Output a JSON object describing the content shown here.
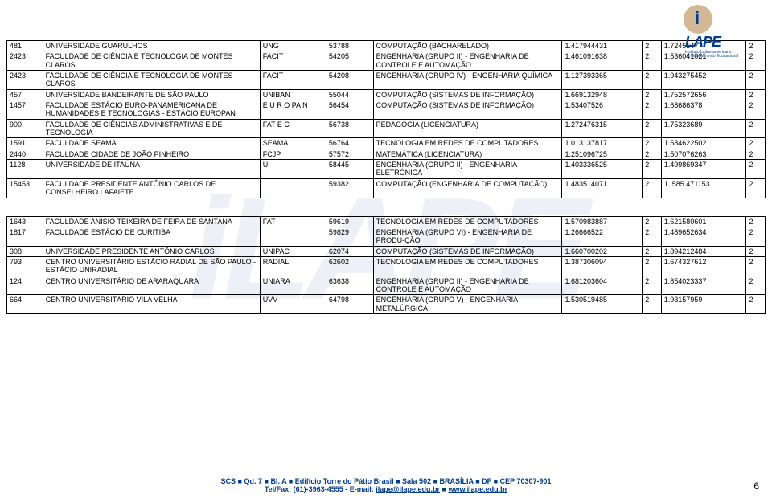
{
  "logo": {
    "main": "LAPE",
    "sub1": "Instituto Latino-americano",
    "sub2": "de Planejamento Educacional"
  },
  "watermark": "iLAPE",
  "tables": [
    {
      "rows": [
        {
          "c0": "481",
          "c1": "UNIVERSIDADE GUARULHOS",
          "c2": "UNG",
          "c3": "53788",
          "c4": "COMPUTAÇÃO (BACHARELADO)",
          "c5": "1.417944431",
          "c6": "2",
          "c7": "1.724554777",
          "c8": "2"
        },
        {
          "c0": "2423",
          "c1": "FACULDADE DE CIÊNCIA E TECNOLOGIA DE MONTES CLAROS",
          "c2": "FACIT",
          "c3": "54205",
          "c4": "ENGENHARIA (GRUPO II) - ENGENHARIA DE CONTROLE E AUTOMAÇÃO",
          "c5": "1.461091638",
          "c6": "2",
          "c7": "1.536041021",
          "c8": "2"
        },
        {
          "c0": "2423",
          "c1": "FACULDADE DE CIÊNCIA E TECNOLOGIA DE MONTES CLAROS",
          "c2": "FACIT",
          "c3": "54208",
          "c4": "ENGENHARIA (GRUPO IV) - ENGENHARIA QUÍMICA",
          "c5": "1.127393365",
          "c6": "2",
          "c7": "1.943275452",
          "c8": "2"
        },
        {
          "c0": "457",
          "c1": "UNIVERSIDADE BANDEIRANTE DE SÃO PAULO",
          "c2": "UNIBAN",
          "c3": "55044",
          "c4": "COMPUTAÇÃO (SISTEMAS DE INFORMAÇÃO)",
          "c5": "1.669132948",
          "c6": "2",
          "c7": "1.752572656",
          "c8": "2"
        },
        {
          "c0": "1457",
          "c1": "FACULDADE ESTÁCIO EURO-PANAMERICANA DE HUMANIDADES E TECNOLOGIAS - ESTÁCIO EUROPAN",
          "c2": "E U R O PA N",
          "c3": "56454",
          "c4": "COMPUTAÇÃO (SISTEMAS DE INFORMAÇÃO)",
          "c5": "1.53407526",
          "c6": "2",
          "c7": "1.68686378",
          "c8": "2"
        },
        {
          "c0": "900",
          "c1": "FACULDADE DE CIÊNCIAS ADMINISTRATIVAS E DE TECNOLOGIA",
          "c2": "FAT E C",
          "c3": "56738",
          "c4": "PEDAGOGIA (LICENCIATURA)",
          "c5": "1.272476315",
          "c6": "2",
          "c7": "1.75323689",
          "c8": "2"
        },
        {
          "c0": "1591",
          "c1": "FACULDADE SEAMA",
          "c2": "SEAMA",
          "c3": "56764",
          "c4": "TECNOLOGIA EM REDES DE COMPUTADORES",
          "c5": "1.013137817",
          "c6": "2",
          "c7": "1.584622502",
          "c8": "2"
        },
        {
          "c0": "2440",
          "c1": "FACULDADE CIDADE DE JOÃO PINHEIRO",
          "c2": "FCJP",
          "c3": "57572",
          "c4": "MATEMÁTICA (LICENCIATURA)",
          "c5": "1.251096725",
          "c6": "2",
          "c7": "1.507076263",
          "c8": "2"
        },
        {
          "c0": "1128",
          "c1": "UNIVERSIDADE DE ITAÚNA",
          "c2": "UI",
          "c3": "58445",
          "c4": "ENGENHARIA (GRUPO II) - ENGENHARIA ELETRÔNICA",
          "c5": "1.403336525",
          "c6": "2",
          "c7": "1.499869347",
          "c8": "2"
        },
        {
          "c0": "15453",
          "c1": "FACULDADE PRESIDENTE ANTÔNIO CARLOS DE CONSELHEIRO LAFAIETE",
          "c2": "",
          "c3": "59382",
          "c4": "COMPUTAÇÃO (ENGENHARIA DE COMPUTAÇÃO)",
          "c5": "1.483514071",
          "c6": "2",
          "c7": "1 .585 471153",
          "c8": "2"
        }
      ]
    },
    {
      "rows": [
        {
          "c0": "1643",
          "c1": "FACULDADE ANÍSIO TEIXEIRA DE FEIRA DE SANTANA",
          "c2": "FAT",
          "c3": "59619",
          "c4": "TECNOLOGIA EM REDES DE COMPUTADORES",
          "c5": "1.570983887",
          "c6": "2",
          "c7": "1.621580601",
          "c8": "2"
        },
        {
          "c0": "1817",
          "c1": "FACULDADE ESTÁCIO DE CURITIBA",
          "c2": "",
          "c3": "59829",
          "c4": "ENGENHARIA (GRUPO VI) - ENGENHARIA DE PRODU-ÇÃO",
          "c5": "1.26666522",
          "c6": "2",
          "c7": "1.489652634",
          "c8": "2"
        },
        {
          "c0": "308",
          "c1": "UNIVERSIDADE PRESIDENTE ANTÔNIO CARLOS",
          "c2": "UNIPAC",
          "c3": "62074",
          "c4": "COMPUTAÇÃO (SISTEMAS DE INFORMAÇÃO)",
          "c5": "1.660700202",
          "c6": "2",
          "c7": "1.894212484",
          "c8": "2"
        },
        {
          "c0": "793",
          "c1": "CENTRO UNIVERSITÁRIO ESTÁCIO RADIAL DE SÃO PAULO -ESTÁCIO UNIRADIAL",
          "c2": "RADIAL",
          "c3": "62602",
          "c4": "TECNOLOGIA EM REDES DE COMPUTADORES",
          "c5": "1.387306094",
          "c6": "2",
          "c7": "1.674327612",
          "c8": "2"
        },
        {
          "c0": "124",
          "c1": "CENTRO UNIVERSITÁRIO DE ARARAQUARA",
          "c2": "UNIARA",
          "c3": "63638",
          "c4": "ENGENHARIA (GRUPO II) - ENGENHARIA DE CONTROLE E AUTOMAÇÃO",
          "c5": "1.681203604",
          "c6": "2",
          "c7": "1.854023337",
          "c8": "2"
        },
        {
          "c0": "664",
          "c1": "CENTRO UNIVERSITÁRIO VILA VELHA",
          "c2": "UVV",
          "c3": "64798",
          "c4": "ENGENHARIA (GRUPO V) - ENGENHARIA METALÚRGICA",
          "c5": "1.530519485",
          "c6": "2",
          "c7": "1.93157959",
          "c8": "2"
        }
      ]
    }
  ],
  "footer": {
    "line1_a": "SCS ",
    "line1_b": " Qd. 7 ",
    "line1_c": " Bl. A ",
    "line1_d": " Edifício Torre do Pátio Brasil ",
    "line1_e": " Sala 502 ",
    "line1_f": " BRASÍLIA ",
    "line1_g": " DF ",
    "line1_h": " CEP 70307-901",
    "line2_a": "Tel/Fax: (61)-3963-4555 - E-mail: ",
    "line2_link1": "ilape@ilape.edu.br",
    "line2_b": " ",
    "line2_link2": "www.ilape.edu.br"
  },
  "page_number": "6",
  "bullet": "■"
}
